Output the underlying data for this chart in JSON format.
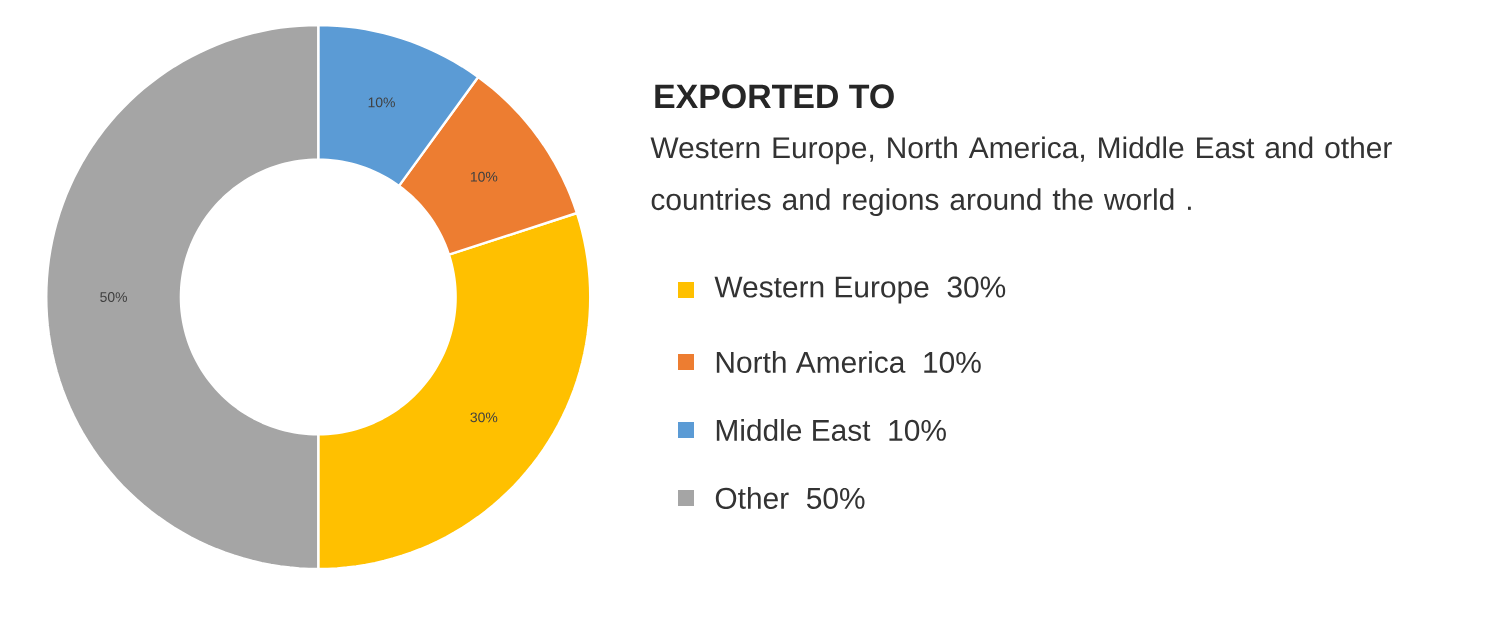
{
  "chart_data": {
    "type": "donut",
    "title": "EXPORTED TO",
    "subtitle": "Western Europe, North America, Middle East and other countries and regions around the world .",
    "categories": [
      "Western Europe",
      "North America",
      "Middle East",
      "Other"
    ],
    "values": [
      30,
      10,
      10,
      50
    ],
    "colors": [
      "#ffc000",
      "#ed7d31",
      "#5b9bd5",
      "#a5a5a5"
    ],
    "value_labels": [
      "30%",
      "10%",
      "10%",
      "50%"
    ],
    "legend": "right"
  }
}
